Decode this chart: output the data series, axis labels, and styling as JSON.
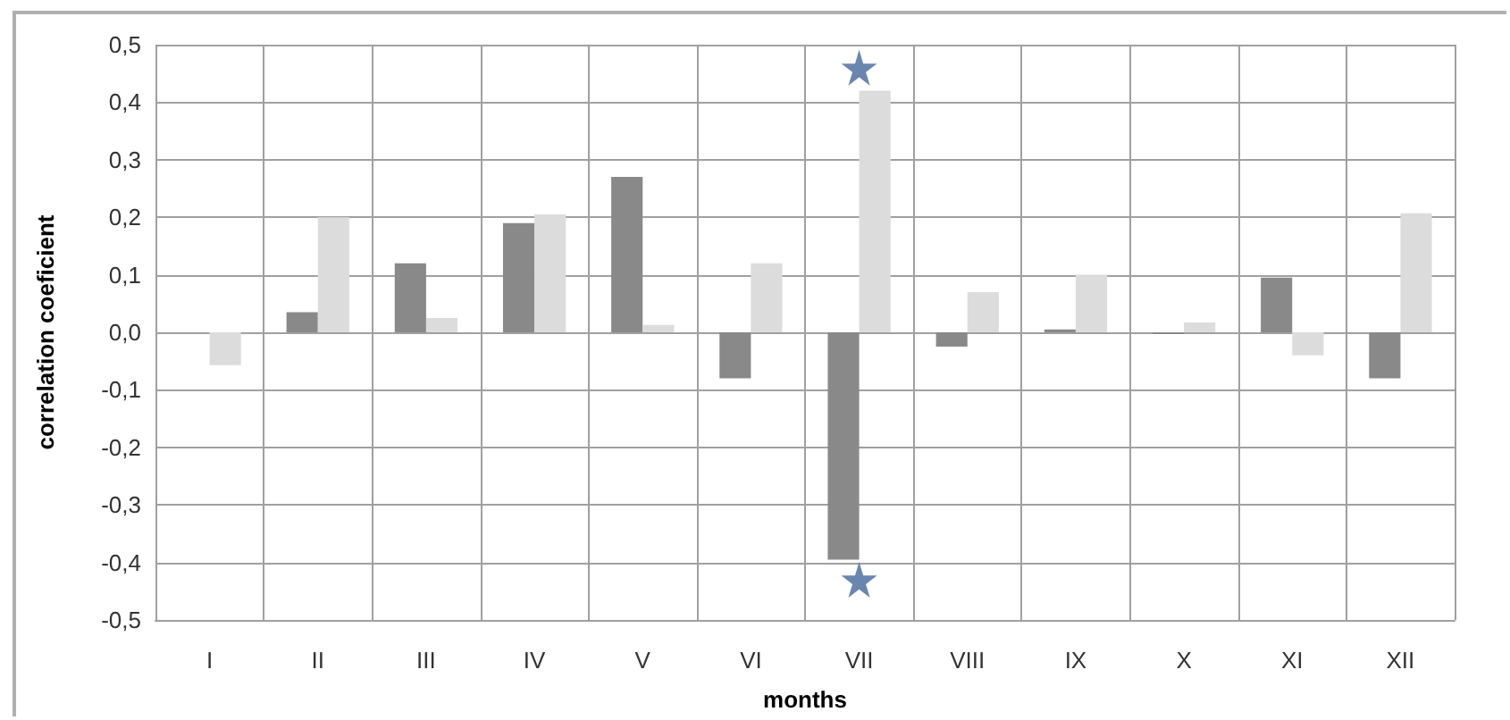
{
  "chart_data": {
    "type": "bar",
    "xlabel": "months",
    "ylabel": "correlation coeficient",
    "categories": [
      "I",
      "II",
      "III",
      "IV",
      "V",
      "VI",
      "VII",
      "VIII",
      "IX",
      "X",
      "XI",
      "XII"
    ],
    "series": [
      {
        "color": "#898989",
        "values": [
          null,
          0.035,
          0.12,
          0.19,
          0.27,
          -0.08,
          -0.395,
          -0.025,
          0.005,
          -0.003,
          0.095,
          -0.08
        ]
      },
      {
        "color": "#dcdcdc",
        "values": [
          -0.057,
          0.2,
          0.025,
          0.205,
          0.013,
          0.12,
          0.42,
          0.07,
          0.1,
          0.017,
          -0.04,
          0.207
        ]
      },
      {
        "type": "scatter",
        "marker": "star",
        "color": "#44689a",
        "x": [
          "VII",
          "VII"
        ],
        "values": [
          0.46,
          -0.43
        ]
      }
    ],
    "ylim": [
      -0.5,
      0.5
    ],
    "yticks": [
      {
        "value": -0.5,
        "label": "-0,5"
      },
      {
        "value": -0.4,
        "label": "-0,4"
      },
      {
        "value": -0.3,
        "label": "-0,3"
      },
      {
        "value": -0.2,
        "label": "-0,2"
      },
      {
        "value": -0.1,
        "label": "-0,1"
      },
      {
        "value": 0,
        "label": "0,0"
      },
      {
        "value": 0.1,
        "label": "0,1"
      },
      {
        "value": 0.2,
        "label": "0,2"
      },
      {
        "value": 0.3,
        "label": "0,3"
      },
      {
        "value": 0.4,
        "label": "0,4"
      },
      {
        "value": 0.5,
        "label": "0,5"
      }
    ],
    "grid": true
  }
}
